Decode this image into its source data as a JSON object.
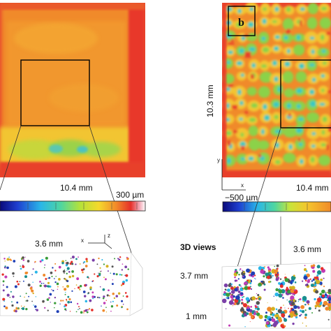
{
  "figure": {
    "panel_a": {
      "width_label": "10.4 mm",
      "colorbar_max_label": "300 µm",
      "three_d": {
        "width_label": "3.6 mm",
        "axes": {
          "x": "x",
          "y": "y",
          "z": "z"
        }
      }
    },
    "panel_b": {
      "letter": "b",
      "width_label": "10.4 mm",
      "height_label": "10.3 mm",
      "colorbar_min_label": "−500 µm",
      "axes": {
        "x": "x",
        "y": "y"
      },
      "three_d": {
        "title": "3D views",
        "width_label": "3.6 mm",
        "depth_label": "3.7 mm",
        "height_label": "1 mm"
      }
    }
  },
  "colors": {
    "heatmap_red": "#e8412a",
    "heatmap_orange": "#f08a2c",
    "heatmap_yellow": "#f2c530",
    "heatmap_green": "#8bd24a",
    "heatmap_cyan": "#39c9c2",
    "heatmap_blue": "#1f3fb5"
  }
}
